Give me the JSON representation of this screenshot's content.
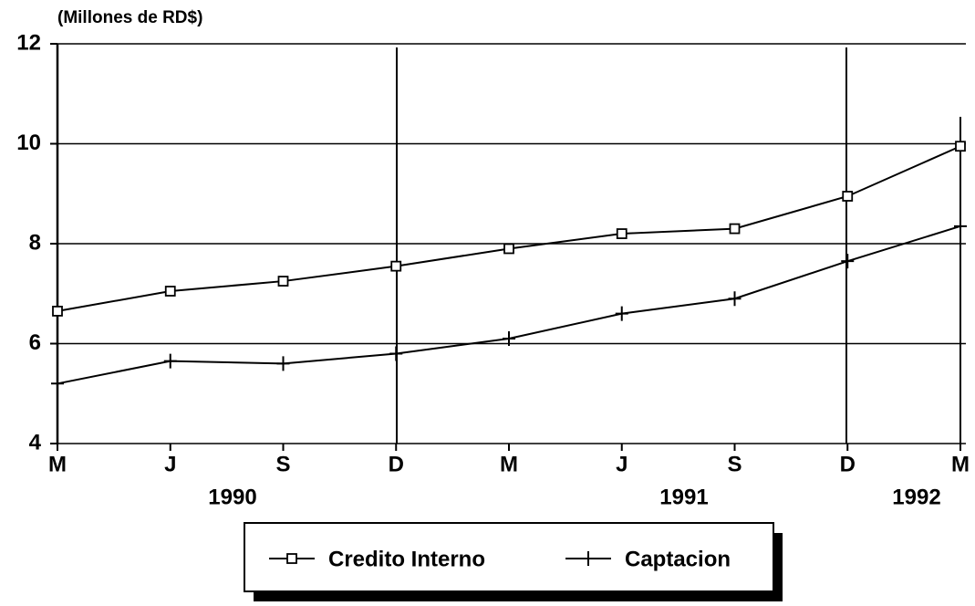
{
  "chart_data": {
    "type": "line",
    "y_label": "(Millones de RD$)",
    "categories": [
      "M",
      "J",
      "S",
      "D",
      "M",
      "J",
      "S",
      "D",
      "M"
    ],
    "annotations": [
      "1990",
      "1991",
      "1992"
    ],
    "series": [
      {
        "name": "Credito Interno",
        "color": "#000000",
        "marker": "square",
        "values": [
          6.65,
          7.05,
          7.25,
          7.55,
          7.9,
          8.2,
          8.3,
          8.95,
          9.95
        ]
      },
      {
        "name": "Captacion",
        "color": "#000000",
        "marker": "plus",
        "values": [
          5.2,
          5.65,
          5.6,
          5.8,
          6.1,
          6.6,
          6.9,
          7.65,
          8.35
        ]
      }
    ],
    "ylim": [
      4,
      12
    ],
    "yticks": [
      4,
      6,
      8,
      10,
      12
    ],
    "grid": true
  }
}
